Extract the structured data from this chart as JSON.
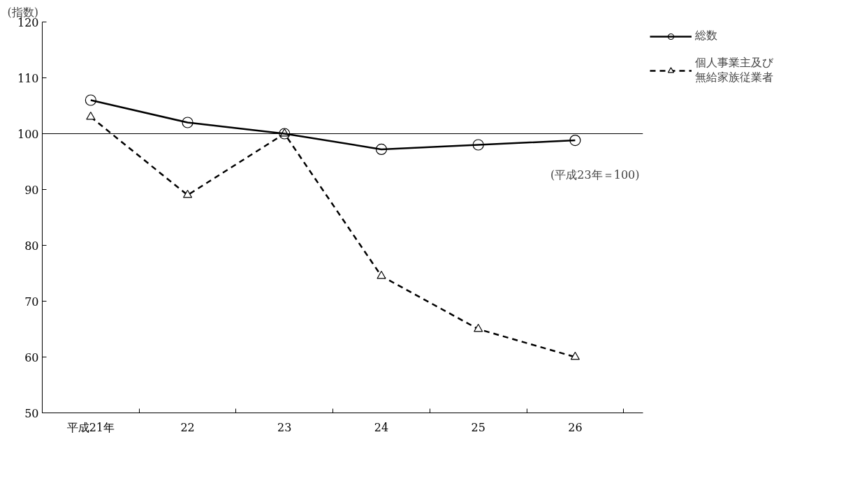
{
  "chart_data": {
    "type": "line",
    "ylabel": "(指数)",
    "categories": [
      "平成21年",
      "22",
      "23",
      "24",
      "25",
      "26"
    ],
    "series": [
      {
        "name": "総数",
        "color": "#000000",
        "values": [
          106.0,
          102.0,
          100.0,
          97.2,
          98.0,
          98.8
        ],
        "marker": "circle",
        "line_style": "solid"
      },
      {
        "name": "個人事業主及び無給家族従業者",
        "color": "#000000",
        "values": [
          103.0,
          89.0,
          100.0,
          74.5,
          65.0,
          60.0
        ],
        "marker": "triangle",
        "line_style": "dashed"
      }
    ],
    "ylim": [
      50,
      120
    ],
    "yticks": [
      50,
      60,
      70,
      80,
      90,
      100,
      110,
      120
    ],
    "ref_lines": [
      {
        "axis": "y",
        "value": 100,
        "color": "#000000"
      }
    ],
    "annotations": [
      "(平成23年＝100)"
    ],
    "grid": false,
    "legend": "top right"
  }
}
